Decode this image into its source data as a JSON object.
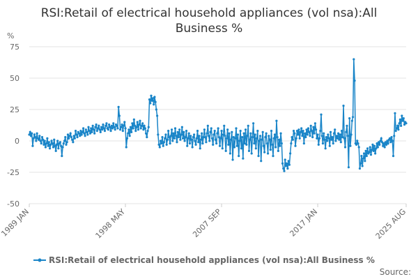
{
  "chart_data": {
    "type": "line",
    "title": "RSI:Retail of electrical household appliances (vol nsa):All Business %",
    "y_label": "%",
    "source": "Source:",
    "ylim": [
      -50,
      75
    ],
    "yticks": [
      75,
      50,
      25,
      0,
      -25,
      -50
    ],
    "grid": true,
    "categories": [
      "1989 JAN",
      null,
      null,
      null,
      null,
      null,
      null,
      null,
      null,
      null,
      null,
      null,
      null,
      null,
      null,
      null,
      null,
      null,
      null,
      null,
      null,
      null,
      null,
      null,
      null,
      null,
      null,
      null,
      null,
      null,
      null,
      null,
      null,
      null,
      null,
      null,
      null,
      null,
      null,
      null,
      null,
      null,
      null,
      null,
      null,
      null,
      null,
      null,
      null,
      null,
      null,
      null,
      null,
      null,
      null,
      null,
      null,
      null,
      null,
      null,
      null,
      null,
      null,
      null,
      null,
      null,
      null,
      null,
      null,
      null,
      null,
      null,
      null,
      null,
      null,
      null,
      null,
      null,
      null,
      null,
      null,
      null,
      null,
      null,
      null,
      null,
      null,
      null,
      null,
      null,
      null,
      null,
      null,
      null,
      null,
      null,
      null,
      null,
      null,
      null,
      null,
      null,
      null,
      null,
      null,
      null,
      null,
      null,
      null,
      null,
      null,
      null,
      "1998 MAY",
      null,
      null,
      null,
      null,
      null,
      null,
      null,
      null,
      null,
      null,
      null,
      null,
      null,
      null,
      null,
      null,
      null,
      null,
      null,
      null,
      null,
      null,
      null,
      null,
      null,
      null,
      null,
      null,
      null,
      null,
      null,
      null,
      null,
      null,
      null,
      null,
      null,
      null,
      null,
      null,
      null,
      null,
      null,
      null,
      null,
      null,
      null,
      null,
      null,
      null,
      null,
      null,
      null,
      null,
      null,
      null,
      null,
      null,
      null,
      null,
      null,
      null,
      null,
      null,
      null,
      null,
      null,
      null,
      null,
      null,
      null,
      null,
      null,
      null,
      null,
      null,
      null,
      null,
      null,
      null,
      null,
      null,
      null,
      null,
      null,
      null,
      null,
      null,
      null,
      null,
      null,
      null,
      null,
      null,
      null,
      null,
      null,
      null,
      null,
      null,
      null,
      null,
      null,
      null,
      null,
      null,
      null,
      null,
      null,
      null,
      null,
      "2007 SEP",
      null,
      null,
      null,
      null,
      null,
      null,
      null,
      null,
      null,
      null,
      null,
      null,
      null,
      null,
      null,
      null,
      null,
      null,
      null,
      null,
      null,
      null,
      null,
      null,
      null,
      null,
      null,
      null,
      null,
      null,
      null,
      null,
      null,
      null,
      null,
      null,
      null,
      null,
      null,
      null,
      null,
      null,
      null,
      null,
      null,
      null,
      null,
      null,
      null,
      null,
      null,
      null,
      null,
      null,
      null,
      null,
      null,
      null,
      null,
      null,
      null,
      null,
      null,
      null,
      null,
      null,
      null,
      null,
      null,
      null,
      null,
      null,
      null,
      null,
      null,
      null,
      null,
      null,
      null,
      null,
      null,
      null,
      null,
      null,
      null,
      null,
      null,
      null,
      null,
      null,
      null,
      null,
      null,
      null,
      null,
      null,
      null,
      null,
      null,
      null,
      null,
      null,
      null,
      null,
      null,
      null,
      null,
      null,
      null,
      null,
      null,
      "2017 JAN",
      null,
      null,
      null,
      null,
      null,
      null,
      null,
      null,
      null,
      null,
      null,
      null,
      null,
      null,
      null,
      null,
      null,
      null,
      null,
      null,
      null,
      null,
      null,
      null,
      null,
      null,
      null,
      null,
      null,
      null,
      null,
      null,
      null,
      null,
      null,
      null,
      null,
      null,
      null,
      null,
      null,
      null,
      null,
      null,
      null,
      null,
      null,
      null,
      null,
      null,
      null,
      null,
      null,
      null,
      null,
      null,
      null,
      null,
      null,
      null,
      null,
      null,
      null,
      null,
      null,
      null,
      null,
      null,
      null,
      null,
      null,
      null,
      null,
      null,
      null,
      null,
      null,
      null,
      null,
      null,
      null,
      null,
      null,
      null,
      null,
      null,
      null,
      null,
      null,
      null,
      null,
      null,
      null,
      null,
      null,
      null,
      null,
      null,
      null,
      null,
      null,
      null,
      "2025 AUG"
    ],
    "series": [
      {
        "name": "RSI:Retail of electrical household appliances (vol nsa):All Business %",
        "color": "#1a85c8",
        "values": [
          5,
          7,
          4,
          6,
          -4,
          2,
          5,
          3,
          0,
          6,
          2,
          1,
          4,
          0,
          -2,
          3,
          1,
          -3,
          0,
          -5,
          -2,
          2,
          -4,
          -1,
          -6,
          -3,
          0,
          -2,
          -5,
          1,
          -4,
          -8,
          -3,
          0,
          -6,
          -2,
          -1,
          -4,
          -12,
          -5,
          -2,
          0,
          3,
          -3,
          -1,
          5,
          2,
          4,
          6,
          3,
          1,
          -1,
          4,
          2,
          8,
          5,
          3,
          7,
          6,
          4,
          8,
          5,
          7,
          10,
          6,
          4,
          9,
          7,
          5,
          11,
          8,
          6,
          10,
          7,
          12,
          9,
          6,
          11,
          13,
          8,
          10,
          12,
          9,
          7,
          11,
          9,
          13,
          10,
          8,
          12,
          14,
          10,
          9,
          13,
          11,
          8,
          12,
          10,
          14,
          11,
          9,
          13,
          12,
          10,
          27,
          20,
          9,
          11,
          13,
          8,
          12,
          15,
          10,
          -5,
          2,
          6,
          9,
          4,
          11,
          7,
          14,
          10,
          17,
          12,
          8,
          11,
          15,
          9,
          13,
          16,
          10,
          12,
          14,
          9,
          12,
          10,
          6,
          3,
          8,
          11,
          33,
          30,
          36,
          32,
          34,
          29,
          35,
          31,
          25,
          20,
          5,
          -3,
          -5,
          0,
          -2,
          3,
          -4,
          -1,
          2,
          5,
          -3,
          1,
          8,
          3,
          -2,
          4,
          9,
          0,
          6,
          2,
          10,
          4,
          -1,
          7,
          3,
          9,
          1,
          5,
          11,
          2,
          7,
          0,
          3,
          8,
          -4,
          2,
          6,
          -2,
          4,
          1,
          -5,
          3,
          5,
          0,
          -3,
          2,
          8,
          -1,
          4,
          -6,
          1,
          6,
          -2,
          3,
          9,
          3,
          -1,
          6,
          12,
          4,
          0,
          7,
          10,
          2,
          -3,
          5,
          8,
          1,
          -2,
          6,
          10,
          3,
          -4,
          2,
          8,
          -6,
          5,
          12,
          4,
          -8,
          2,
          9,
          -3,
          6,
          -10,
          1,
          7,
          -15,
          3,
          -5,
          2,
          10,
          -4,
          5,
          -12,
          0,
          8,
          -6,
          3,
          -14,
          6,
          -2,
          9,
          -3,
          4,
          12,
          -8,
          1,
          6,
          -10,
          3,
          14,
          -2,
          5,
          -6,
          2,
          8,
          -12,
          0,
          4,
          -16,
          1,
          7,
          -4,
          -9,
          3,
          6,
          -2,
          -10,
          4,
          1,
          -7,
          8,
          -3,
          -12,
          2,
          5,
          -5,
          16,
          3,
          -8,
          1,
          -4,
          6,
          -2,
          -18,
          -22,
          -24,
          -15,
          -20,
          -18,
          -22,
          -16,
          -19,
          -10,
          -2,
          3,
          1,
          8,
          6,
          -4,
          2,
          8,
          5,
          9,
          2,
          7,
          10,
          4,
          8,
          -2,
          6,
          3,
          9,
          5,
          10,
          7,
          4,
          12,
          8,
          3,
          11,
          6,
          14,
          9,
          2,
          5,
          -3,
          2,
          8,
          21,
          4,
          -2,
          6,
          1,
          -6,
          3,
          0,
          5,
          2,
          -4,
          7,
          1,
          3,
          -2,
          6,
          9,
          0,
          4,
          2,
          6,
          1,
          5,
          -1,
          8,
          3,
          28,
          2,
          -5,
          7,
          12,
          4,
          -21,
          18,
          -4,
          5,
          16,
          19,
          65,
          48,
          -2,
          -3,
          0,
          -2,
          -5,
          -22,
          -18,
          -12,
          -20,
          -14,
          -10,
          -16,
          -8,
          -12,
          -6,
          -10,
          -9,
          -5,
          -11,
          -7,
          -3,
          -8,
          -4,
          -10,
          -6,
          -2,
          -5,
          -1,
          -3,
          0,
          2,
          -1,
          -4,
          -2,
          -5,
          -1,
          -3,
          0,
          -2,
          1,
          2,
          -1,
          3,
          0,
          -12,
          4,
          22,
          8,
          10,
          12,
          9,
          14,
          17,
          12,
          20,
          16,
          18,
          13,
          15,
          14
        ]
      }
    ]
  }
}
